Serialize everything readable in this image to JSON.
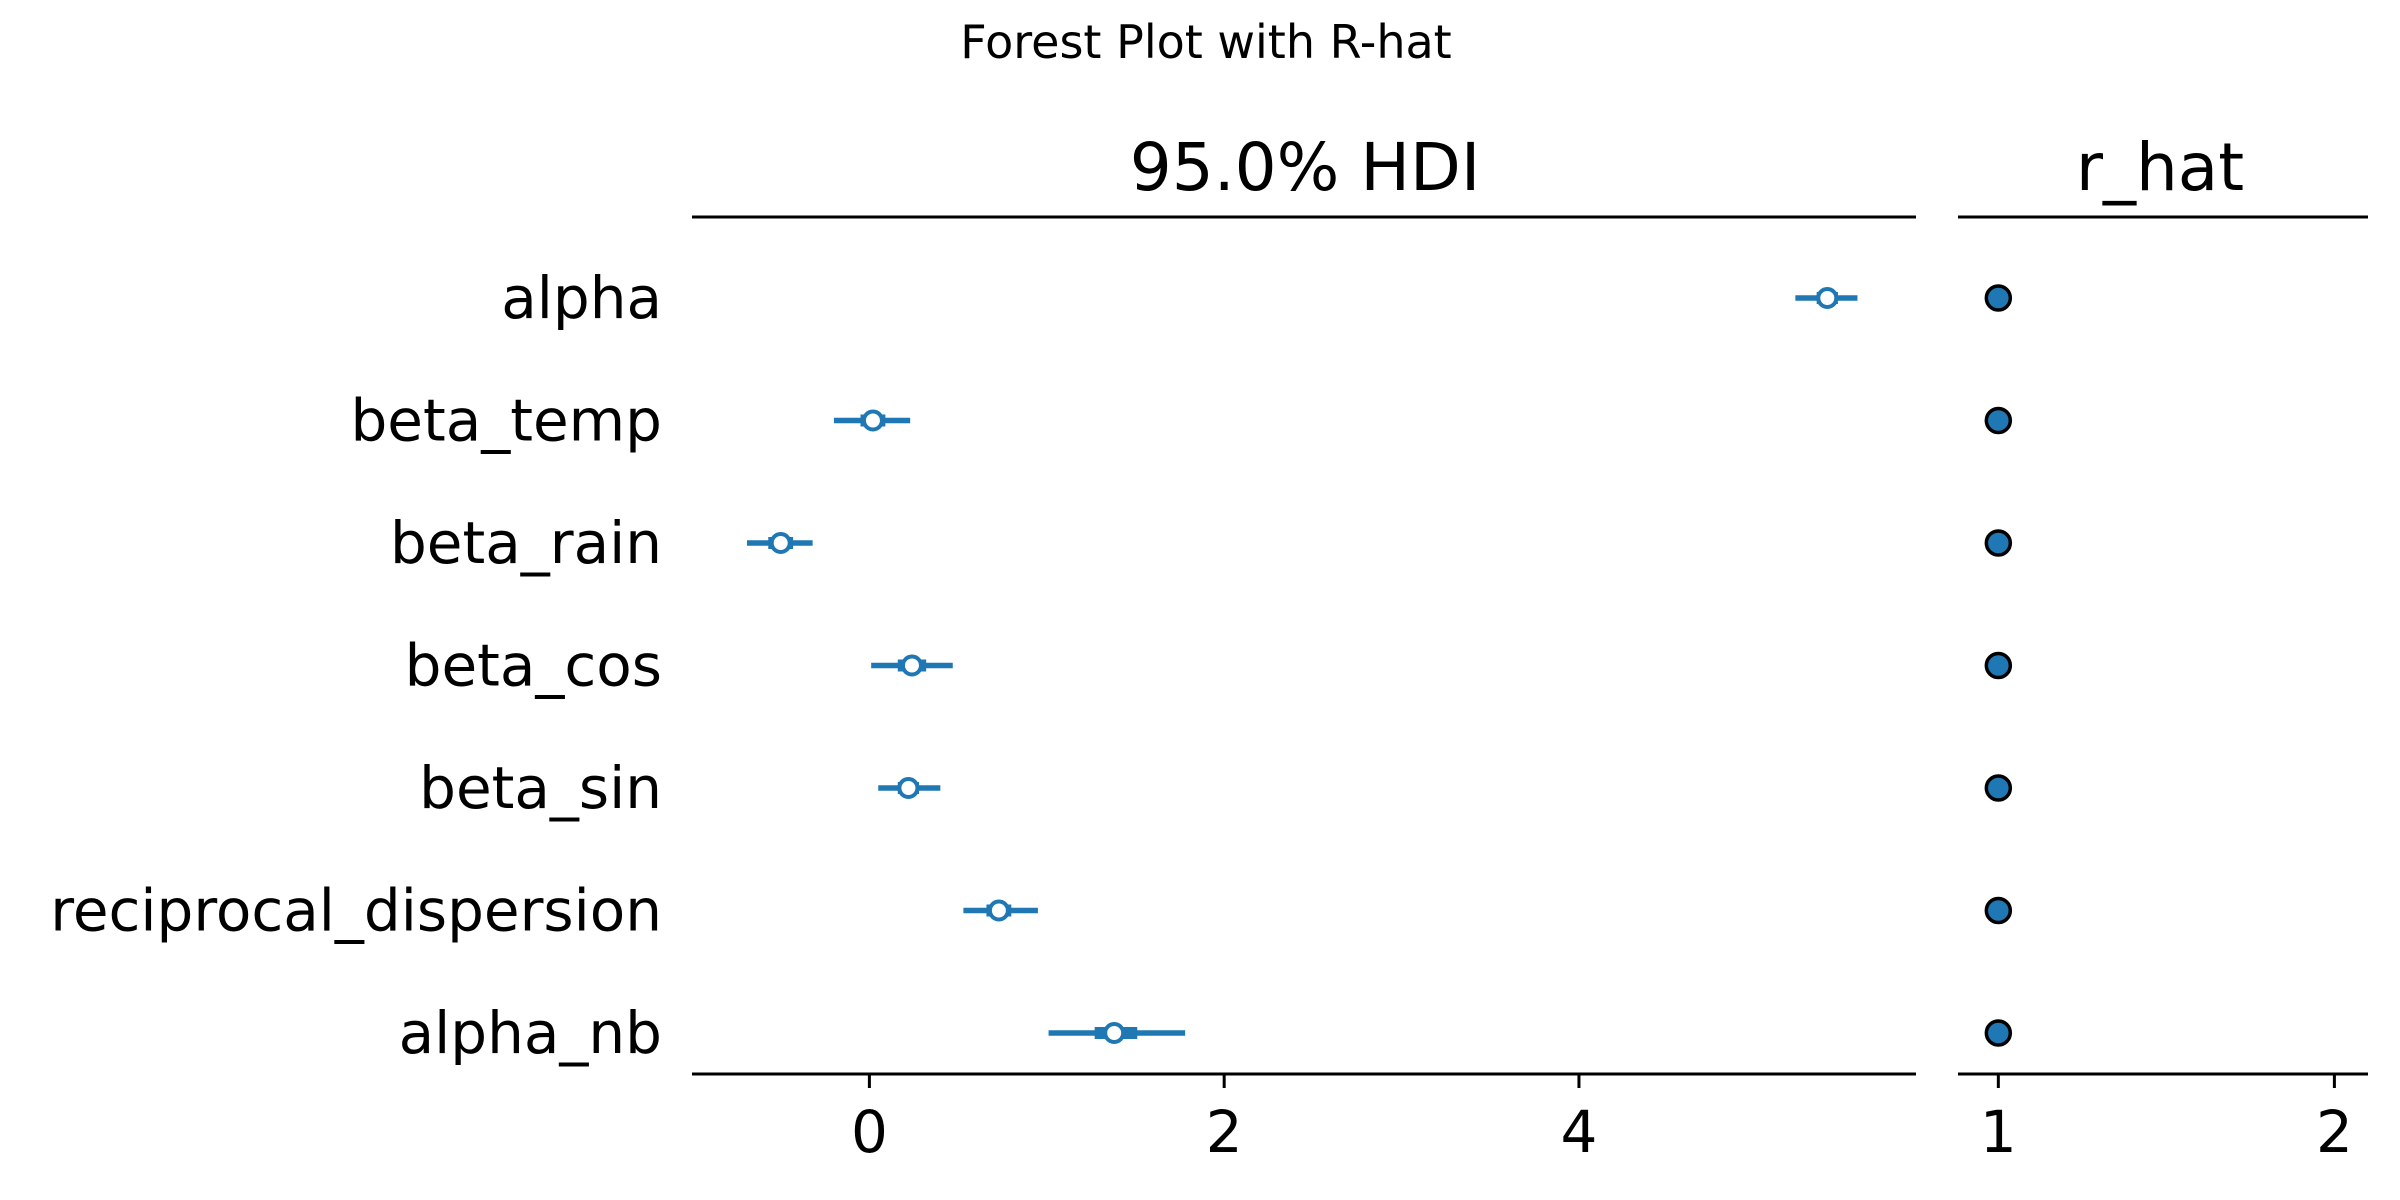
{
  "chart_data": {
    "type": "scatter",
    "title": "Forest Plot with R-hat",
    "panels": [
      {
        "title": "95.0% HDI",
        "xlim": [
          -1.0,
          5.9
        ],
        "xticks": [
          0,
          2,
          4
        ]
      },
      {
        "title": "r_hat",
        "xlim": [
          0.88,
          2.1
        ],
        "xticks": [
          1,
          2
        ]
      }
    ],
    "grid": false,
    "legend": "none",
    "color": "#1f77b4",
    "variables": [
      {
        "name": "alpha",
        "mean": 5.4,
        "hdi_95": [
          5.22,
          5.57
        ],
        "iqr": [
          5.34,
          5.46
        ],
        "r_hat": 1.0
      },
      {
        "name": "beta_temp",
        "mean": 0.02,
        "hdi_95": [
          -0.2,
          0.23
        ],
        "iqr": [
          -0.05,
          0.09
        ],
        "r_hat": 1.0
      },
      {
        "name": "beta_rain",
        "mean": -0.5,
        "hdi_95": [
          -0.69,
          -0.32
        ],
        "iqr": [
          -0.57,
          -0.43
        ],
        "r_hat": 1.0
      },
      {
        "name": "beta_cos",
        "mean": 0.24,
        "hdi_95": [
          0.01,
          0.47
        ],
        "iqr": [
          0.16,
          0.32
        ],
        "r_hat": 1.0
      },
      {
        "name": "beta_sin",
        "mean": 0.22,
        "hdi_95": [
          0.05,
          0.4
        ],
        "iqr": [
          0.16,
          0.28
        ],
        "r_hat": 1.0
      },
      {
        "name": "reciprocal_dispersion",
        "mean": 0.73,
        "hdi_95": [
          0.53,
          0.95
        ],
        "iqr": [
          0.66,
          0.8
        ],
        "r_hat": 1.0
      },
      {
        "name": "alpha_nb",
        "mean": 1.38,
        "hdi_95": [
          1.01,
          1.78
        ],
        "iqr": [
          1.27,
          1.51
        ],
        "r_hat": 1.0
      }
    ]
  }
}
